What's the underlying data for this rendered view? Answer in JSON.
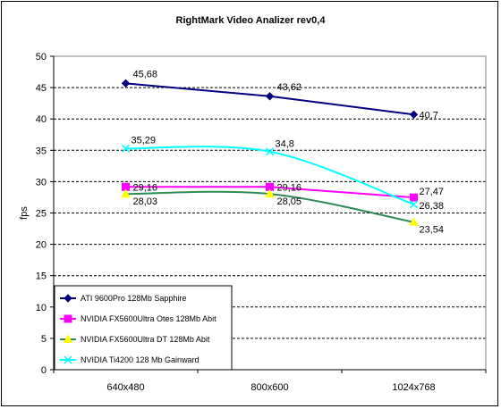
{
  "chart_data": {
    "type": "line",
    "title": "RightMark Video Analizer rev0,4",
    "xlabel": "",
    "ylabel": "fps",
    "categories": [
      "640x480",
      "800x600",
      "1024x768"
    ],
    "ylim": [
      0,
      50
    ],
    "yticks": [
      0,
      5,
      10,
      15,
      20,
      25,
      30,
      35,
      40,
      45,
      50
    ],
    "grid": "horizontal dashed",
    "legend_position": "bottom-left",
    "series": [
      {
        "name": "ATI 9600Pro 128Mb Sapphire",
        "values": [
          45.68,
          43.62,
          40.7
        ],
        "labels": [
          "45,68",
          "43,62",
          "40,7"
        ],
        "color": "#000080",
        "marker": "diamond",
        "marker_color": "#000080",
        "smooth": false
      },
      {
        "name": "NVIDIA FX5600Ultra Otes 128Mb Abit",
        "values": [
          29.16,
          29.16,
          27.47
        ],
        "labels": [
          "29,16",
          "29,16",
          "27,47"
        ],
        "color": "#ff00ff",
        "marker": "square",
        "marker_color": "#ff00ff",
        "smooth": false
      },
      {
        "name": "NVIDIA FX5600Ultra DT 128Mb Abit",
        "values": [
          28.03,
          28.05,
          23.54
        ],
        "labels": [
          "28,03",
          "28,05",
          "23,54"
        ],
        "color": "#2e8b57",
        "marker": "triangle",
        "marker_color": "#ffff00",
        "smooth": true
      },
      {
        "name": "NVIDIA Ti4200 128 Mb Gainward",
        "values": [
          35.29,
          34.8,
          26.38
        ],
        "labels": [
          "35,29",
          "34,8",
          "26,38"
        ],
        "color": "#00ffff",
        "marker": "x",
        "marker_color": "#00ffff",
        "smooth": true
      }
    ]
  }
}
